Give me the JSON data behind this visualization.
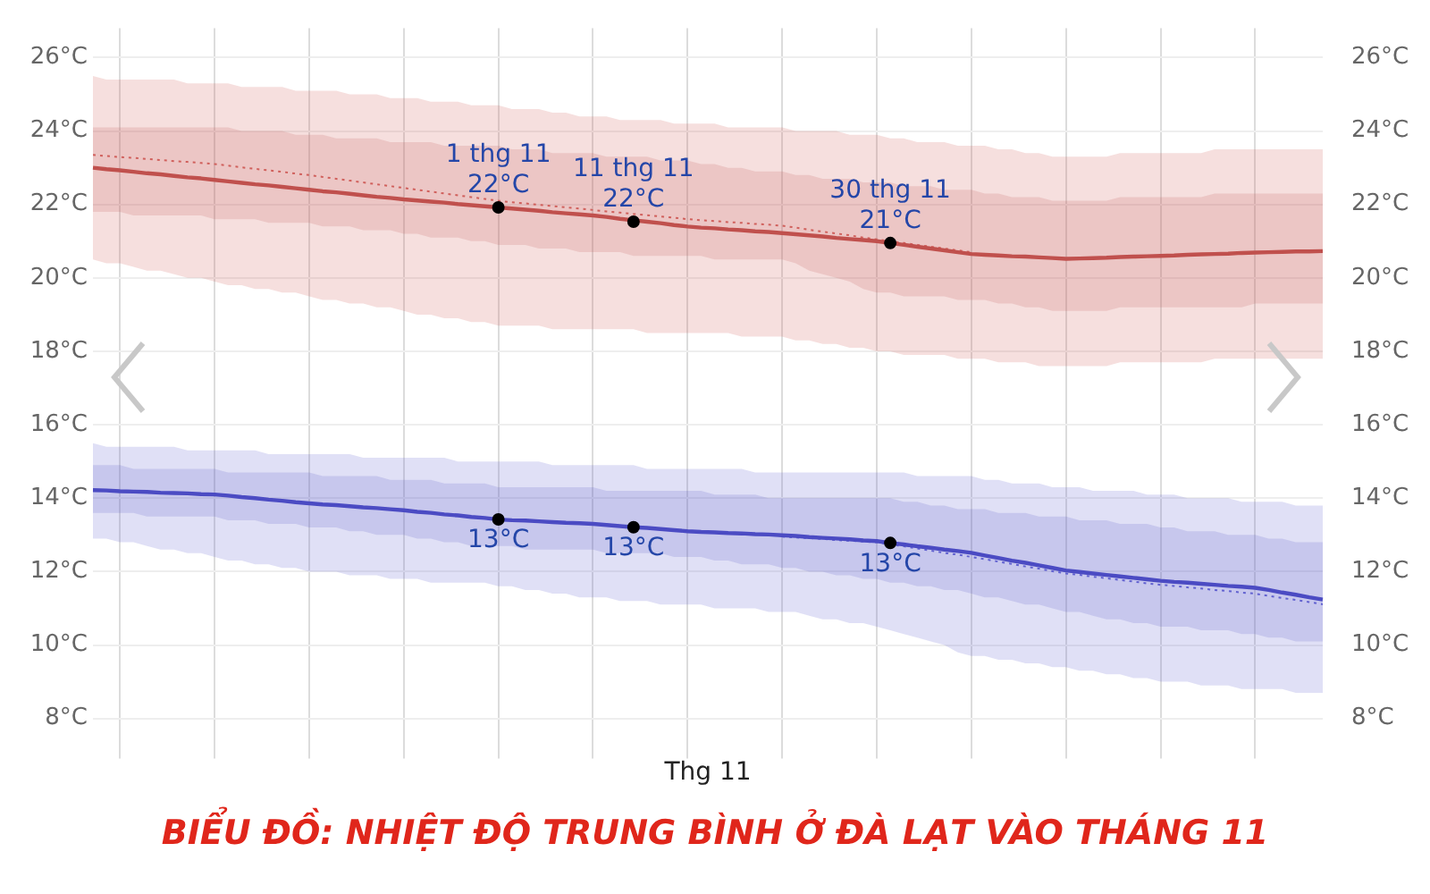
{
  "chart_data": {
    "type": "line",
    "title": "BIỂU ĐỒ: NHIỆT ĐỘ TRUNG BÌNH Ở ĐÀ LẠT VÀO THÁNG 11",
    "xlabel": "Thg 11",
    "categories": [
      null,
      null,
      null,
      null,
      null,
      null,
      null,
      null,
      null,
      null,
      null,
      null,
      null,
      null,
      null,
      null,
      null,
      null,
      null,
      null,
      null,
      null,
      null,
      null,
      null,
      null,
      null,
      null,
      null,
      null,
      null,
      null,
      null,
      null,
      null,
      null,
      null,
      null,
      null,
      null,
      null,
      null,
      null,
      null,
      null,
      null,
      null,
      null,
      null,
      null,
      null,
      null,
      null,
      null,
      null,
      null,
      null,
      null,
      null,
      null,
      null,
      null,
      null,
      null,
      null,
      null,
      null,
      null,
      null,
      null,
      null,
      null,
      null,
      null,
      null,
      null,
      null,
      null,
      null,
      null,
      null,
      null,
      null,
      null,
      null,
      null,
      null,
      null,
      null,
      null,
      null,
      null
    ],
    "ylim": [
      7.3,
      26.8
    ],
    "yticks": [
      {
        "value": 8,
        "label": "8°C"
      },
      {
        "value": 10,
        "label": "10°C"
      },
      {
        "value": 12,
        "label": "12°C"
      },
      {
        "value": 14,
        "label": "14°C"
      },
      {
        "value": 16,
        "label": "16°C"
      },
      {
        "value": 18,
        "label": "18°C"
      },
      {
        "value": 20,
        "label": "20°C"
      },
      {
        "value": 22,
        "label": "22°C"
      },
      {
        "value": 24,
        "label": "24°C"
      },
      {
        "value": 26,
        "label": "26°C"
      }
    ],
    "y2lim": [
      7.3,
      26.8
    ],
    "y2ticks": [
      {
        "value": 8,
        "label": "8°C"
      },
      {
        "value": 10,
        "label": "10°C"
      },
      {
        "value": 12,
        "label": "12°C"
      },
      {
        "value": 14,
        "label": "14°C"
      },
      {
        "value": 16,
        "label": "16°C"
      },
      {
        "value": 18,
        "label": "18°C"
      },
      {
        "value": 20,
        "label": "20°C"
      },
      {
        "value": 22,
        "label": "22°C"
      },
      {
        "value": 24,
        "label": "24°C"
      },
      {
        "value": 26,
        "label": "26°C"
      }
    ],
    "series": [
      {
        "type": "line",
        "color": "#d0605c",
        "line_style": "dotted",
        "values": [
          23.35,
          23.32,
          23.29,
          23.27,
          23.24,
          23.21,
          23.18,
          23.16,
          23.13,
          23.1,
          23.06,
          23.01,
          22.97,
          22.93,
          22.89,
          22.84,
          22.8,
          22.75,
          22.7,
          22.65,
          22.6,
          22.55,
          22.5,
          22.45,
          22.4,
          22.35,
          22.3,
          22.25,
          22.2,
          22.15,
          22.1,
          22.06,
          22.03,
          21.99,
          21.96,
          21.92,
          21.89,
          21.85,
          21.81,
          21.78,
          21.74,
          21.71,
          21.67,
          21.64,
          21.6,
          21.57,
          21.55,
          21.52,
          21.5,
          21.47,
          21.45,
          21.42,
          21.37,
          21.31,
          21.26,
          21.21,
          21.16,
          21.1,
          21.05,
          21.0,
          20.95,
          20.9,
          20.85,
          20.8,
          20.75,
          20.7,
          null,
          null,
          null,
          null,
          null,
          null,
          null,
          null,
          null,
          null,
          null,
          null,
          null,
          null,
          null,
          null,
          null,
          null,
          null,
          null,
          null,
          null,
          null,
          null,
          null,
          null
        ],
        "lower": [
          20.5,
          20.4,
          20.4,
          20.3,
          20.2,
          20.2,
          20.1,
          20.0,
          20.0,
          19.9,
          19.8,
          19.8,
          19.7,
          19.7,
          19.6,
          19.6,
          19.5,
          19.4,
          19.4,
          19.3,
          19.3,
          19.2,
          19.2,
          19.1,
          19.0,
          19.0,
          18.9,
          18.9,
          18.8,
          18.8,
          18.7,
          18.7,
          18.7,
          18.7,
          18.6,
          18.6,
          18.6,
          18.6,
          18.6,
          18.6,
          18.6,
          18.5,
          18.5,
          18.5,
          18.5,
          18.5,
          18.5,
          18.5,
          18.4,
          18.4,
          18.4,
          18.4,
          18.3,
          18.3,
          18.2,
          18.2,
          18.1,
          18.1,
          18.0,
          18.0,
          17.9,
          17.9,
          17.9,
          17.9,
          17.8,
          17.8,
          17.8,
          17.7,
          17.7,
          17.7,
          17.6,
          17.6,
          17.6,
          17.6,
          17.6,
          17.6,
          17.7,
          17.7,
          17.7,
          17.7,
          17.7,
          17.7,
          17.7,
          17.8,
          17.8,
          17.8,
          17.8,
          17.8,
          17.8,
          17.8,
          17.8,
          17.8
        ],
        "upper": [
          25.5,
          25.4,
          25.4,
          25.4,
          25.4,
          25.4,
          25.4,
          25.3,
          25.3,
          25.3,
          25.3,
          25.2,
          25.2,
          25.2,
          25.2,
          25.1,
          25.1,
          25.1,
          25.1,
          25.0,
          25.0,
          25.0,
          24.9,
          24.9,
          24.9,
          24.8,
          24.8,
          24.8,
          24.7,
          24.7,
          24.7,
          24.6,
          24.6,
          24.6,
          24.5,
          24.5,
          24.4,
          24.4,
          24.4,
          24.3,
          24.3,
          24.3,
          24.3,
          24.2,
          24.2,
          24.2,
          24.2,
          24.1,
          24.1,
          24.1,
          24.1,
          24.1,
          24.0,
          24.0,
          24.0,
          24.0,
          23.9,
          23.9,
          23.9,
          23.8,
          23.8,
          23.7,
          23.7,
          23.7,
          23.6,
          23.6,
          23.6,
          23.5,
          23.5,
          23.4,
          23.4,
          23.3,
          23.3,
          23.3,
          23.3,
          23.3,
          23.4,
          23.4,
          23.4,
          23.4,
          23.4,
          23.4,
          23.4,
          23.5,
          23.5,
          23.5,
          23.5,
          23.5,
          23.5,
          23.5,
          23.5,
          23.5
        ]
      },
      {
        "type": "line",
        "color": "#c0504d",
        "line_style": "solid",
        "values": [
          23.0,
          22.96,
          22.93,
          22.89,
          22.85,
          22.82,
          22.78,
          22.74,
          22.71,
          22.67,
          22.63,
          22.59,
          22.55,
          22.52,
          22.48,
          22.44,
          22.4,
          22.36,
          22.33,
          22.29,
          22.25,
          22.21,
          22.18,
          22.14,
          22.11,
          22.08,
          22.05,
          22.01,
          21.98,
          21.95,
          21.92,
          21.89,
          21.86,
          21.83,
          21.79,
          21.76,
          21.73,
          21.7,
          21.66,
          21.61,
          21.57,
          21.53,
          21.49,
          21.44,
          21.4,
          21.37,
          21.35,
          21.32,
          21.3,
          21.27,
          21.25,
          21.22,
          21.19,
          21.16,
          21.13,
          21.09,
          21.06,
          21.03,
          21.0,
          20.95,
          20.9,
          20.85,
          20.8,
          20.75,
          20.7,
          20.65,
          20.63,
          20.61,
          20.59,
          20.58,
          20.56,
          20.54,
          20.52,
          20.53,
          20.54,
          20.55,
          20.57,
          20.58,
          20.59,
          20.6,
          20.61,
          20.63,
          20.64,
          20.65,
          20.66,
          20.68,
          20.69,
          20.7,
          20.71,
          20.72,
          20.72,
          20.73
        ],
        "lower": [
          21.8,
          21.8,
          21.8,
          21.7,
          21.7,
          21.7,
          21.7,
          21.7,
          21.7,
          21.6,
          21.6,
          21.6,
          21.6,
          21.5,
          21.5,
          21.5,
          21.5,
          21.4,
          21.4,
          21.4,
          21.3,
          21.3,
          21.3,
          21.2,
          21.2,
          21.1,
          21.1,
          21.1,
          21.0,
          21.0,
          20.9,
          20.9,
          20.9,
          20.8,
          20.8,
          20.8,
          20.7,
          20.7,
          20.7,
          20.7,
          20.6,
          20.6,
          20.6,
          20.6,
          20.6,
          20.6,
          20.5,
          20.5,
          20.5,
          20.5,
          20.5,
          20.5,
          20.4,
          20.2,
          20.1,
          20.0,
          19.9,
          19.7,
          19.6,
          19.6,
          19.5,
          19.5,
          19.5,
          19.5,
          19.4,
          19.4,
          19.4,
          19.3,
          19.3,
          19.2,
          19.2,
          19.1,
          19.1,
          19.1,
          19.1,
          19.1,
          19.2,
          19.2,
          19.2,
          19.2,
          19.2,
          19.2,
          19.2,
          19.2,
          19.2,
          19.2,
          19.3,
          19.3,
          19.3,
          19.3,
          19.3,
          19.3
        ],
        "upper": [
          24.1,
          24.1,
          24.1,
          24.1,
          24.1,
          24.1,
          24.1,
          24.1,
          24.1,
          24.1,
          24.1,
          24.0,
          24.0,
          24.0,
          24.0,
          23.9,
          23.9,
          23.9,
          23.8,
          23.8,
          23.8,
          23.8,
          23.7,
          23.7,
          23.7,
          23.7,
          23.6,
          23.6,
          23.6,
          23.6,
          23.6,
          23.5,
          23.5,
          23.5,
          23.4,
          23.4,
          23.4,
          23.4,
          23.3,
          23.3,
          23.3,
          23.3,
          23.2,
          23.2,
          23.2,
          23.1,
          23.1,
          23.0,
          23.0,
          22.9,
          22.9,
          22.9,
          22.8,
          22.8,
          22.7,
          22.7,
          22.7,
          22.6,
          22.6,
          22.6,
          22.5,
          22.5,
          22.5,
          22.4,
          22.4,
          22.4,
          22.3,
          22.3,
          22.2,
          22.2,
          22.2,
          22.1,
          22.1,
          22.1,
          22.1,
          22.1,
          22.2,
          22.2,
          22.2,
          22.2,
          22.2,
          22.2,
          22.2,
          22.3,
          22.3,
          22.3,
          22.3,
          22.3,
          22.3,
          22.3,
          22.3,
          22.3
        ]
      },
      {
        "type": "line",
        "color": "#6262d0",
        "line_style": "dotted",
        "values": [
          null,
          null,
          null,
          null,
          null,
          null,
          null,
          null,
          null,
          null,
          null,
          null,
          null,
          null,
          null,
          null,
          null,
          null,
          null,
          null,
          null,
          null,
          null,
          null,
          null,
          null,
          null,
          null,
          null,
          null,
          null,
          null,
          null,
          null,
          null,
          null,
          null,
          null,
          null,
          null,
          null,
          null,
          null,
          null,
          null,
          null,
          null,
          null,
          null,
          null,
          null,
          12.95,
          12.93,
          12.91,
          12.89,
          12.86,
          12.84,
          12.82,
          12.8,
          12.74,
          12.69,
          12.63,
          12.57,
          12.51,
          12.46,
          12.4,
          12.34,
          12.27,
          12.21,
          12.14,
          12.08,
          12.01,
          11.95,
          11.91,
          11.86,
          11.82,
          11.77,
          11.73,
          11.68,
          11.64,
          11.61,
          11.57,
          11.54,
          11.5,
          11.47,
          11.43,
          11.4,
          11.34,
          11.28,
          11.23,
          11.17,
          11.11
        ],
        "lower": [
          12.9,
          12.9,
          12.8,
          12.8,
          12.7,
          12.6,
          12.6,
          12.5,
          12.5,
          12.4,
          12.3,
          12.3,
          12.2,
          12.2,
          12.1,
          12.1,
          12.0,
          12.0,
          12.0,
          11.9,
          11.9,
          11.9,
          11.8,
          11.8,
          11.8,
          11.7,
          11.7,
          11.7,
          11.7,
          11.7,
          11.6,
          11.6,
          11.5,
          11.5,
          11.4,
          11.4,
          11.3,
          11.3,
          11.3,
          11.2,
          11.2,
          11.2,
          11.1,
          11.1,
          11.1,
          11.1,
          11.0,
          11.0,
          11.0,
          11.0,
          10.9,
          10.9,
          10.9,
          10.8,
          10.7,
          10.7,
          10.6,
          10.6,
          10.5,
          10.4,
          10.3,
          10.2,
          10.1,
          10.0,
          9.8,
          9.7,
          9.7,
          9.6,
          9.6,
          9.5,
          9.5,
          9.4,
          9.4,
          9.3,
          9.3,
          9.2,
          9.2,
          9.1,
          9.1,
          9.0,
          9.0,
          9.0,
          8.9,
          8.9,
          8.9,
          8.8,
          8.8,
          8.8,
          8.8,
          8.7,
          8.7,
          8.7
        ],
        "upper": [
          15.5,
          15.4,
          15.4,
          15.4,
          15.4,
          15.4,
          15.4,
          15.3,
          15.3,
          15.3,
          15.3,
          15.3,
          15.3,
          15.2,
          15.2,
          15.2,
          15.2,
          15.2,
          15.2,
          15.2,
          15.1,
          15.1,
          15.1,
          15.1,
          15.1,
          15.1,
          15.1,
          15.0,
          15.0,
          15.0,
          15.0,
          15.0,
          15.0,
          15.0,
          14.9,
          14.9,
          14.9,
          14.9,
          14.9,
          14.9,
          14.9,
          14.8,
          14.8,
          14.8,
          14.8,
          14.8,
          14.8,
          14.8,
          14.8,
          14.7,
          14.7,
          14.7,
          14.7,
          14.7,
          14.7,
          14.7,
          14.7,
          14.7,
          14.7,
          14.7,
          14.7,
          14.6,
          14.6,
          14.6,
          14.6,
          14.6,
          14.5,
          14.5,
          14.4,
          14.4,
          14.4,
          14.3,
          14.3,
          14.3,
          14.2,
          14.2,
          14.2,
          14.2,
          14.1,
          14.1,
          14.1,
          14.0,
          14.0,
          14.0,
          14.0,
          13.9,
          13.9,
          13.9,
          13.9,
          13.8,
          13.8,
          13.8
        ]
      },
      {
        "type": "line",
        "color": "#4b4bc3",
        "line_style": "solid",
        "values": [
          14.22,
          14.21,
          14.19,
          14.18,
          14.17,
          14.15,
          14.14,
          14.13,
          14.11,
          14.1,
          14.07,
          14.03,
          14.0,
          13.96,
          13.93,
          13.89,
          13.86,
          13.83,
          13.81,
          13.78,
          13.75,
          13.73,
          13.7,
          13.67,
          13.63,
          13.6,
          13.56,
          13.53,
          13.49,
          13.46,
          13.42,
          13.4,
          13.39,
          13.37,
          13.35,
          13.33,
          13.32,
          13.3,
          13.27,
          13.24,
          13.21,
          13.19,
          13.16,
          13.13,
          13.1,
          13.08,
          13.07,
          13.05,
          13.04,
          13.02,
          13.01,
          12.99,
          12.97,
          12.94,
          12.92,
          12.9,
          12.88,
          12.85,
          12.83,
          12.78,
          12.74,
          12.69,
          12.65,
          12.6,
          12.56,
          12.51,
          12.44,
          12.37,
          12.3,
          12.24,
          12.17,
          12.1,
          12.03,
          11.99,
          11.95,
          11.91,
          11.87,
          11.83,
          11.79,
          11.75,
          11.72,
          11.7,
          11.67,
          11.64,
          11.61,
          11.59,
          11.56,
          11.5,
          11.43,
          11.37,
          11.3,
          11.24
        ],
        "lower": [
          13.6,
          13.6,
          13.6,
          13.6,
          13.5,
          13.5,
          13.5,
          13.5,
          13.5,
          13.5,
          13.4,
          13.4,
          13.4,
          13.3,
          13.3,
          13.3,
          13.2,
          13.2,
          13.2,
          13.1,
          13.1,
          13.0,
          13.0,
          13.0,
          12.9,
          12.9,
          12.8,
          12.8,
          12.7,
          12.7,
          12.7,
          12.7,
          12.6,
          12.6,
          12.6,
          12.6,
          12.6,
          12.6,
          12.5,
          12.5,
          12.5,
          12.5,
          12.5,
          12.4,
          12.4,
          12.4,
          12.3,
          12.3,
          12.2,
          12.2,
          12.2,
          12.1,
          12.1,
          12.0,
          12.0,
          11.9,
          11.9,
          11.8,
          11.8,
          11.7,
          11.7,
          11.6,
          11.6,
          11.5,
          11.5,
          11.4,
          11.3,
          11.3,
          11.2,
          11.1,
          11.1,
          11.0,
          10.9,
          10.9,
          10.8,
          10.7,
          10.7,
          10.6,
          10.6,
          10.5,
          10.5,
          10.5,
          10.4,
          10.4,
          10.4,
          10.3,
          10.3,
          10.2,
          10.2,
          10.1,
          10.1,
          10.1
        ],
        "upper": [
          14.9,
          14.9,
          14.9,
          14.8,
          14.8,
          14.8,
          14.8,
          14.8,
          14.8,
          14.8,
          14.7,
          14.7,
          14.7,
          14.7,
          14.7,
          14.7,
          14.7,
          14.6,
          14.6,
          14.6,
          14.6,
          14.6,
          14.5,
          14.5,
          14.5,
          14.5,
          14.4,
          14.4,
          14.4,
          14.4,
          14.3,
          14.3,
          14.3,
          14.3,
          14.3,
          14.3,
          14.3,
          14.3,
          14.2,
          14.2,
          14.2,
          14.2,
          14.2,
          14.2,
          14.2,
          14.2,
          14.1,
          14.1,
          14.1,
          14.1,
          14.0,
          14.0,
          14.0,
          14.0,
          14.0,
          14.0,
          14.0,
          14.0,
          14.0,
          14.0,
          13.9,
          13.9,
          13.8,
          13.8,
          13.7,
          13.7,
          13.7,
          13.6,
          13.6,
          13.6,
          13.5,
          13.5,
          13.5,
          13.4,
          13.4,
          13.4,
          13.3,
          13.3,
          13.3,
          13.2,
          13.2,
          13.1,
          13.1,
          13.1,
          13.0,
          13.0,
          13.0,
          12.9,
          12.9,
          12.8,
          12.8,
          12.8
        ]
      },
      {
        "type": "scatter",
        "color": "#000000",
        "marker": "circle",
        "values": [
          null,
          null,
          null,
          null,
          null,
          null,
          null,
          null,
          null,
          null,
          null,
          null,
          null,
          null,
          null,
          null,
          null,
          null,
          null,
          null,
          null,
          null,
          null,
          null,
          null,
          null,
          null,
          null,
          null,
          null,
          21.92,
          null,
          null,
          null,
          null,
          null,
          null,
          null,
          null,
          null,
          21.53,
          null,
          null,
          null,
          null,
          null,
          null,
          null,
          null,
          null,
          null,
          null,
          null,
          null,
          null,
          null,
          null,
          null,
          null,
          20.95,
          null,
          null,
          null,
          null,
          null,
          null,
          null,
          null,
          null,
          null,
          null,
          null,
          null,
          null,
          null,
          null,
          null,
          null,
          null,
          null,
          null,
          null,
          null,
          null,
          null,
          null,
          null,
          null,
          null,
          null,
          null,
          null
        ],
        "value_labels": [
          null,
          null,
          null,
          null,
          null,
          null,
          null,
          null,
          null,
          null,
          null,
          null,
          null,
          null,
          null,
          null,
          null,
          null,
          null,
          null,
          null,
          null,
          null,
          null,
          null,
          null,
          null,
          null,
          null,
          null,
          "1 thg 11\n22°C",
          null,
          null,
          null,
          null,
          null,
          null,
          null,
          null,
          null,
          "11 thg 11\n22°C",
          null,
          null,
          null,
          null,
          null,
          null,
          null,
          null,
          null,
          null,
          null,
          null,
          null,
          null,
          null,
          null,
          null,
          null,
          "30 thg 11\n21°C",
          null,
          null,
          null,
          null,
          null,
          null,
          null,
          null,
          null,
          null,
          null,
          null,
          null,
          null,
          null,
          null,
          null,
          null,
          null,
          null,
          null,
          null,
          null,
          null,
          null,
          null,
          null,
          null,
          null,
          null,
          null,
          null
        ]
      },
      {
        "type": "scatter",
        "color": "#000000",
        "marker": "circle",
        "values": [
          null,
          null,
          null,
          null,
          null,
          null,
          null,
          null,
          null,
          null,
          null,
          null,
          null,
          null,
          null,
          null,
          null,
          null,
          null,
          null,
          null,
          null,
          null,
          null,
          null,
          null,
          null,
          null,
          null,
          null,
          13.42,
          null,
          null,
          null,
          null,
          null,
          null,
          null,
          null,
          null,
          13.21,
          null,
          null,
          null,
          null,
          null,
          null,
          null,
          null,
          null,
          null,
          null,
          null,
          null,
          null,
          null,
          null,
          null,
          null,
          12.78,
          null,
          null,
          null,
          null,
          null,
          null,
          null,
          null,
          null,
          null,
          null,
          null,
          null,
          null,
          null,
          null,
          null,
          null,
          null,
          null,
          null,
          null,
          null,
          null,
          null,
          null,
          null,
          null,
          null,
          null,
          null,
          null
        ],
        "value_labels": [
          null,
          null,
          null,
          null,
          null,
          null,
          null,
          null,
          null,
          null,
          null,
          null,
          null,
          null,
          null,
          null,
          null,
          null,
          null,
          null,
          null,
          null,
          null,
          null,
          null,
          null,
          null,
          null,
          null,
          null,
          "13°C",
          null,
          null,
          null,
          null,
          null,
          null,
          null,
          null,
          null,
          "13°C",
          null,
          null,
          null,
          null,
          null,
          null,
          null,
          null,
          null,
          null,
          null,
          null,
          null,
          null,
          null,
          null,
          null,
          null,
          "13°C",
          null,
          null,
          null,
          null,
          null,
          null,
          null,
          null,
          null,
          null,
          null,
          null,
          null,
          null,
          null,
          null,
          null,
          null,
          null,
          null,
          null,
          null,
          null,
          null,
          null,
          null,
          null,
          null,
          null,
          null,
          null,
          null
        ]
      }
    ],
    "grid": true,
    "legend": false,
    "marker": "none",
    "tick_labels": "y"
  }
}
